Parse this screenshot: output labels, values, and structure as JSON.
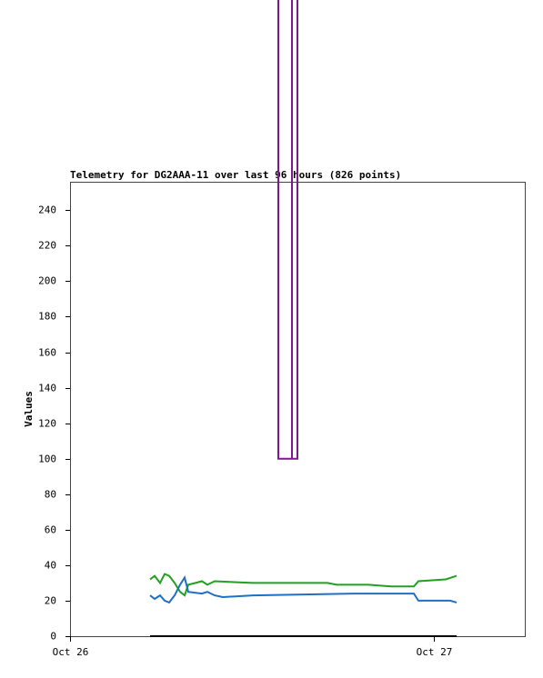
{
  "chart_data": {
    "type": "line",
    "title": "Telemetry for DG2AAA-11 over last 96 hours (826 points)",
    "y_label": "Values",
    "xlim": [
      0,
      30
    ],
    "xticks": [
      {
        "value": 0,
        "label": "Oct 26"
      },
      {
        "value": 24,
        "label": "Oct 27"
      }
    ],
    "ylim": [
      0,
      256
    ],
    "yticks": [
      0,
      20,
      40,
      60,
      80,
      100,
      120,
      140,
      160,
      180,
      200,
      220,
      240
    ],
    "series": [
      {
        "color": "#7b1a8a",
        "x": [
          13.74,
          13.74,
          15.0,
          15.0,
          14.64,
          14.64
        ],
        "values": [
          360,
          100,
          100,
          360,
          360,
          100
        ]
      },
      {
        "color": "#22a022",
        "x": [
          5.28,
          5.58,
          5.94,
          6.24,
          6.54,
          6.9,
          7.26,
          7.56,
          7.8,
          8.28,
          8.7,
          9.06,
          9.54,
          12.06,
          16.98,
          17.58,
          19.68,
          21.18,
          22.68,
          22.98,
          24.78,
          25.5
        ],
        "values": [
          32,
          34,
          30,
          35,
          34,
          30,
          25,
          23,
          29,
          30,
          31,
          29,
          31,
          30,
          30,
          29,
          29,
          28,
          28,
          31,
          32,
          34
        ]
      },
      {
        "color": "#1f6fc4",
        "x": [
          5.28,
          5.58,
          5.94,
          6.24,
          6.54,
          6.9,
          7.26,
          7.56,
          7.8,
          8.7,
          9.06,
          9.54,
          10.08,
          12.06,
          18.78,
          22.68,
          22.98,
          25.08,
          25.5
        ],
        "values": [
          23,
          21,
          23,
          20,
          19,
          23,
          29,
          33,
          25,
          24,
          25,
          23,
          22,
          23,
          24,
          24,
          20,
          20,
          19
        ]
      },
      {
        "color": "#000000",
        "x": [
          5.28,
          25.5
        ],
        "values": [
          0,
          0
        ]
      }
    ]
  }
}
